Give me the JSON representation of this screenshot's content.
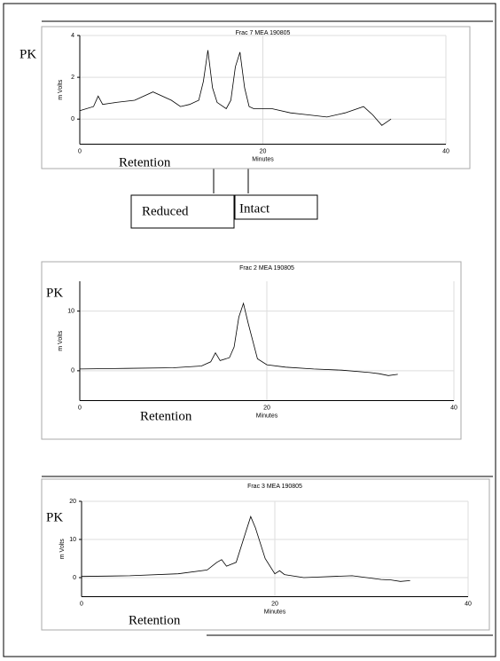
{
  "chart_data": [
    {
      "type": "line",
      "title": "Frac 7 MEA 190805",
      "x_label": "Minutes",
      "y_label": "m Volts",
      "xlim": [
        0,
        40
      ],
      "ylim": [
        -1.2,
        4
      ],
      "xticks": [
        0,
        20,
        40
      ],
      "yticks": [
        0,
        2,
        4
      ],
      "grid": true,
      "color": "#000000",
      "x": [
        0,
        1.5,
        2,
        2.5,
        4,
        6,
        8,
        10,
        11,
        12,
        13,
        13.5,
        14,
        14.5,
        15,
        16,
        16.5,
        17,
        17.5,
        18,
        18.5,
        19,
        21,
        23,
        25,
        27,
        29,
        31,
        32,
        33,
        34
      ],
      "values": [
        0.4,
        0.6,
        1.1,
        0.7,
        0.8,
        0.9,
        1.3,
        0.9,
        0.6,
        0.7,
        0.9,
        1.8,
        3.3,
        1.5,
        0.8,
        0.5,
        0.9,
        2.5,
        3.2,
        1.5,
        0.6,
        0.5,
        0.5,
        0.3,
        0.2,
        0.1,
        0.3,
        0.6,
        0.2,
        -0.3,
        0
      ],
      "annotations": [
        "PK",
        "Retention",
        "Reduced",
        "Intact"
      ]
    },
    {
      "type": "line",
      "title": "Frac 2 MEA 190805",
      "x_label": "Minutes",
      "y_label": "m Volts",
      "xlim": [
        0,
        40
      ],
      "ylim": [
        -5,
        15
      ],
      "xticks": [
        0,
        20,
        40
      ],
      "yticks": [
        0,
        10
      ],
      "grid": true,
      "color": "#000000",
      "x": [
        0,
        5,
        10,
        13,
        14,
        14.5,
        15,
        16,
        16.5,
        17,
        17.5,
        18,
        19,
        20,
        22,
        25,
        28,
        31,
        32,
        33,
        34
      ],
      "values": [
        0.3,
        0.4,
        0.5,
        0.8,
        1.5,
        3,
        1.7,
        2.2,
        4,
        9,
        11.3,
        8,
        2,
        1,
        0.6,
        0.3,
        0.1,
        -0.3,
        -0.5,
        -0.8,
        -0.6
      ],
      "annotations": [
        "PK",
        "Retention"
      ]
    },
    {
      "type": "line",
      "title": "Frac 3 MEA 190805",
      "x_label": "Minutes",
      "y_label": "m Volts",
      "xlim": [
        0,
        40
      ],
      "ylim": [
        -5,
        20
      ],
      "xticks": [
        0,
        20,
        40
      ],
      "yticks": [
        0,
        10,
        20
      ],
      "grid": true,
      "color": "#000000",
      "x": [
        0,
        5,
        10,
        13,
        14,
        14.5,
        15,
        16,
        17,
        17.5,
        18,
        19,
        20,
        20.5,
        21,
        23,
        25,
        28,
        31,
        32,
        33,
        34
      ],
      "values": [
        0.3,
        0.5,
        1,
        2,
        4,
        4.7,
        3,
        4,
        12,
        16,
        13,
        5,
        1,
        1.8,
        0.8,
        0,
        0.2,
        0.5,
        -0.5,
        -0.6,
        -1,
        -0.8
      ],
      "annotations": [
        "PK",
        "Retention"
      ]
    }
  ]
}
